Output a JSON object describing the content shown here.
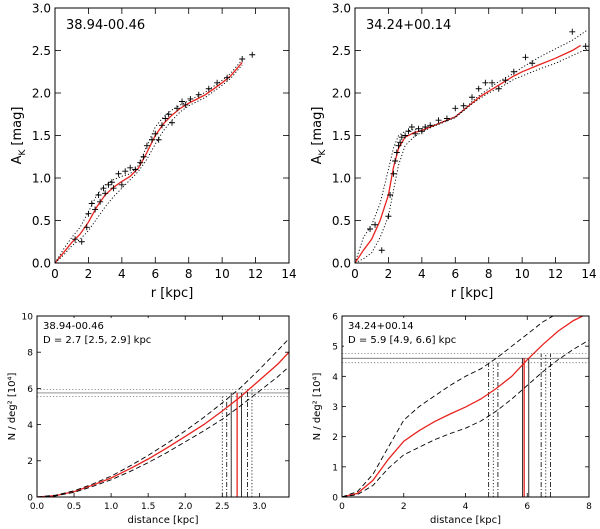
{
  "chart_data": [
    {
      "type": "scatter",
      "field_label": "38.94-00.46",
      "xlabel": "r [kpc]",
      "ylabel_main": "A",
      "ylabel_sub": "K",
      "ylabel_unit": "[mag]",
      "xlim": [
        0,
        14
      ],
      "ylim": [
        0,
        3
      ],
      "xticks": [
        0,
        2,
        4,
        6,
        8,
        10,
        12,
        14
      ],
      "yticks": [
        0.0,
        0.5,
        1.0,
        1.5,
        2.0,
        2.5,
        3.0
      ],
      "xtick_labels": [
        "0",
        "2",
        "4",
        "6",
        "8",
        "10",
        "12",
        "14"
      ],
      "ytick_labels": [
        "0.0",
        "0.5",
        "1.0",
        "1.5",
        "2.0",
        "2.5",
        "3.0"
      ],
      "points": [
        [
          1.2,
          0.28
        ],
        [
          1.6,
          0.25
        ],
        [
          1.9,
          0.42
        ],
        [
          2.0,
          0.58
        ],
        [
          2.2,
          0.7
        ],
        [
          2.4,
          0.63
        ],
        [
          2.6,
          0.8
        ],
        [
          2.7,
          0.72
        ],
        [
          2.9,
          0.88
        ],
        [
          3.0,
          0.82
        ],
        [
          3.2,
          0.92
        ],
        [
          3.4,
          0.95
        ],
        [
          3.5,
          0.88
        ],
        [
          3.8,
          1.05
        ],
        [
          4.0,
          0.92
        ],
        [
          4.2,
          1.08
        ],
        [
          4.5,
          1.12
        ],
        [
          4.8,
          1.1
        ],
        [
          5.1,
          1.18
        ],
        [
          5.3,
          1.25
        ],
        [
          5.5,
          1.38
        ],
        [
          5.8,
          1.45
        ],
        [
          6.0,
          1.52
        ],
        [
          6.2,
          1.45
        ],
        [
          6.4,
          1.62
        ],
        [
          6.6,
          1.7
        ],
        [
          6.8,
          1.75
        ],
        [
          7.0,
          1.65
        ],
        [
          7.3,
          1.82
        ],
        [
          7.6,
          1.9
        ],
        [
          7.8,
          1.86
        ],
        [
          8.1,
          1.93
        ],
        [
          8.6,
          1.98
        ],
        [
          9.2,
          2.05
        ],
        [
          9.7,
          2.12
        ],
        [
          10.3,
          2.18
        ],
        [
          11.2,
          2.4
        ],
        [
          11.8,
          2.45
        ]
      ],
      "series": [
        {
          "name": "fit",
          "style": "solid",
          "color": "#e8231f",
          "x": [
            0,
            0.5,
            1,
            1.5,
            2,
            2.5,
            3,
            3.5,
            4,
            4.5,
            5,
            5.5,
            6,
            6.5,
            7,
            7.5,
            8,
            8.5,
            9,
            9.5,
            10,
            10.5,
            11.2
          ],
          "y": [
            0,
            0.12,
            0.24,
            0.34,
            0.48,
            0.66,
            0.8,
            0.89,
            0.96,
            1.02,
            1.12,
            1.3,
            1.5,
            1.64,
            1.74,
            1.82,
            1.88,
            1.93,
            1.98,
            2.05,
            2.12,
            2.2,
            2.36
          ]
        },
        {
          "name": "upper",
          "style": "dotted",
          "color": "#000000",
          "x": [
            0,
            0.5,
            1,
            1.5,
            2,
            2.5,
            3,
            3.5,
            4,
            4.5,
            5,
            5.5,
            6,
            6.5,
            7,
            7.5,
            8,
            8.5,
            9,
            9.5,
            10,
            10.5,
            11.2
          ],
          "y": [
            0,
            0.16,
            0.3,
            0.42,
            0.6,
            0.8,
            0.92,
            0.98,
            1.02,
            1.05,
            1.15,
            1.38,
            1.6,
            1.72,
            1.8,
            1.86,
            1.91,
            1.96,
            2.01,
            2.08,
            2.15,
            2.23,
            2.39
          ]
        },
        {
          "name": "lower",
          "style": "dotted",
          "color": "#000000",
          "x": [
            0,
            0.5,
            1,
            1.5,
            2,
            2.5,
            3,
            3.5,
            4,
            4.5,
            5,
            5.5,
            6,
            6.5,
            7,
            7.5,
            8,
            8.5,
            9,
            9.5,
            10,
            10.5,
            11.2
          ],
          "y": [
            0,
            0.09,
            0.2,
            0.28,
            0.38,
            0.52,
            0.66,
            0.78,
            0.88,
            0.98,
            1.08,
            1.22,
            1.4,
            1.56,
            1.68,
            1.78,
            1.85,
            1.9,
            1.95,
            2.02,
            2.09,
            2.17,
            2.33
          ]
        }
      ]
    },
    {
      "type": "scatter",
      "field_label": "34.24+00.14",
      "xlabel": "r [kpc]",
      "ylabel_main": "A",
      "ylabel_sub": "K",
      "ylabel_unit": "[mag]",
      "xlim": [
        0,
        14
      ],
      "ylim": [
        0,
        3
      ],
      "xticks": [
        0,
        2,
        4,
        6,
        8,
        10,
        12,
        14
      ],
      "yticks": [
        0.0,
        0.5,
        1.0,
        1.5,
        2.0,
        2.5,
        3.0
      ],
      "xtick_labels": [
        "0",
        "2",
        "4",
        "6",
        "8",
        "10",
        "12",
        "14"
      ],
      "ytick_labels": [
        "0.0",
        "0.5",
        "1.0",
        "1.5",
        "2.0",
        "2.5",
        "3.0"
      ],
      "points": [
        [
          0.9,
          0.4
        ],
        [
          1.2,
          0.45
        ],
        [
          1.6,
          0.15
        ],
        [
          2.0,
          0.55
        ],
        [
          2.1,
          0.8
        ],
        [
          2.3,
          1.05
        ],
        [
          2.4,
          1.2
        ],
        [
          2.5,
          1.3
        ],
        [
          2.6,
          1.38
        ],
        [
          2.7,
          1.42
        ],
        [
          2.8,
          1.48
        ],
        [
          3.0,
          1.5
        ],
        [
          3.2,
          1.55
        ],
        [
          3.4,
          1.6
        ],
        [
          3.6,
          1.52
        ],
        [
          3.8,
          1.58
        ],
        [
          4.0,
          1.55
        ],
        [
          4.2,
          1.6
        ],
        [
          4.5,
          1.62
        ],
        [
          5.0,
          1.68
        ],
        [
          5.5,
          1.7
        ],
        [
          6.0,
          1.82
        ],
        [
          6.5,
          1.85
        ],
        [
          7.0,
          1.95
        ],
        [
          7.4,
          2.05
        ],
        [
          7.8,
          2.12
        ],
        [
          8.2,
          2.12
        ],
        [
          8.6,
          2.05
        ],
        [
          9.0,
          2.15
        ],
        [
          9.5,
          2.25
        ],
        [
          10.2,
          2.42
        ],
        [
          10.6,
          2.35
        ],
        [
          13.0,
          2.72
        ],
        [
          13.8,
          2.55
        ]
      ],
      "series": [
        {
          "name": "fit",
          "style": "solid",
          "color": "#e8231f",
          "x": [
            0,
            0.5,
            1,
            1.5,
            2,
            2.3,
            2.6,
            3,
            3.5,
            4,
            4.5,
            5,
            5.5,
            6,
            6.5,
            7,
            7.5,
            8,
            8.5,
            9,
            9.5,
            10,
            11,
            12,
            13,
            13.5
          ],
          "y": [
            0,
            0.15,
            0.28,
            0.5,
            0.8,
            1.12,
            1.35,
            1.48,
            1.53,
            1.56,
            1.6,
            1.64,
            1.68,
            1.72,
            1.8,
            1.88,
            1.96,
            2.02,
            2.08,
            2.14,
            2.2,
            2.25,
            2.33,
            2.41,
            2.5,
            2.56
          ]
        },
        {
          "name": "upper",
          "style": "dotted",
          "color": "#000000",
          "x": [
            0,
            0.5,
            1,
            1.5,
            2,
            2.3,
            2.6,
            3,
            3.5,
            4,
            4.5,
            5,
            5.5,
            6,
            6.5,
            7,
            7.5,
            8,
            8.5,
            9,
            9.5,
            10,
            11,
            12,
            13,
            13.9
          ],
          "y": [
            0,
            0.3,
            0.45,
            0.7,
            1.1,
            1.35,
            1.5,
            1.55,
            1.57,
            1.58,
            1.61,
            1.64,
            1.68,
            1.72,
            1.8,
            1.9,
            1.98,
            2.05,
            2.12,
            2.18,
            2.23,
            2.3,
            2.42,
            2.52,
            2.62,
            2.74
          ]
        },
        {
          "name": "lower",
          "style": "dotted",
          "color": "#000000",
          "x": [
            0,
            0.5,
            1,
            1.5,
            2,
            2.3,
            2.6,
            3,
            3.5,
            4,
            4.5,
            5,
            5.5,
            6,
            6.5,
            7,
            7.5,
            8,
            8.5,
            9,
            9.5,
            10,
            11,
            12,
            13,
            13.9
          ],
          "y": [
            0,
            0.05,
            0.12,
            0.3,
            0.55,
            0.85,
            1.15,
            1.38,
            1.48,
            1.54,
            1.59,
            1.63,
            1.67,
            1.71,
            1.79,
            1.87,
            1.94,
            2.0,
            2.05,
            2.1,
            2.16,
            2.2,
            2.28,
            2.35,
            2.44,
            2.52
          ]
        }
      ]
    },
    {
      "type": "line",
      "field_label": "38.94-00.46",
      "distance_label": "D = 2.7 [2.5, 2.9] kpc",
      "xlabel": "distance [kpc]",
      "ylabel": "N / deg² [10⁴]",
      "xlim": [
        0,
        3.4
      ],
      "ylim": [
        0,
        10
      ],
      "xticks": [
        0,
        0.5,
        1.0,
        1.5,
        2.0,
        2.5,
        3.0
      ],
      "yticks": [
        0,
        2,
        4,
        6,
        8,
        10
      ],
      "xtick_labels": [
        "0.0",
        "0.5",
        "1.0",
        "1.5",
        "2.0",
        "2.5",
        "3.0"
      ],
      "ytick_labels": [
        "0",
        "2",
        "4",
        "6",
        "8",
        "10"
      ],
      "hlines": [
        {
          "y": 5.75,
          "style": "solid"
        },
        {
          "y": 5.55,
          "style": "dotted"
        },
        {
          "y": 5.95,
          "style": "dotted"
        }
      ],
      "vlines": [
        {
          "x": 2.7,
          "style": "solid",
          "color": "#e8231f",
          "ymax": 5.75
        },
        {
          "x": 2.5,
          "style": "dotted",
          "color": "#000000",
          "ymax": 5.55
        },
        {
          "x": 2.9,
          "style": "dotted",
          "color": "#000000",
          "ymax": 5.95
        },
        {
          "x": 2.62,
          "style": "solid",
          "color": "#000000",
          "ymax": 5.75
        },
        {
          "x": 2.76,
          "style": "solid",
          "color": "#000000",
          "ymax": 5.75
        },
        {
          "x": 2.56,
          "style": "dashdot",
          "color": "#000000",
          "ymax": 5.55
        },
        {
          "x": 2.84,
          "style": "dashdot",
          "color": "#000000",
          "ymax": 5.95
        }
      ],
      "series": [
        {
          "name": "model",
          "style": "solid",
          "color": "#e8231f",
          "x": [
            0,
            0.25,
            0.5,
            0.75,
            1,
            1.25,
            1.5,
            1.75,
            2,
            2.25,
            2.5,
            2.75,
            3,
            3.25,
            3.4
          ],
          "y": [
            0,
            0.08,
            0.3,
            0.65,
            1.05,
            1.55,
            2.1,
            2.7,
            3.35,
            4.0,
            4.75,
            5.55,
            6.45,
            7.35,
            8.0
          ]
        },
        {
          "name": "upper",
          "style": "dashed",
          "color": "#000000",
          "x": [
            0,
            0.25,
            0.5,
            0.75,
            1,
            1.25,
            1.5,
            1.75,
            2,
            2.25,
            2.5,
            2.75,
            3,
            3.25,
            3.4
          ],
          "y": [
            0,
            0.1,
            0.34,
            0.72,
            1.15,
            1.7,
            2.3,
            2.95,
            3.65,
            4.4,
            5.2,
            6.05,
            7.05,
            8.1,
            8.75
          ]
        },
        {
          "name": "lower",
          "style": "dashed",
          "color": "#000000",
          "x": [
            0,
            0.25,
            0.5,
            0.75,
            1,
            1.25,
            1.5,
            1.75,
            2,
            2.25,
            2.5,
            2.75,
            3,
            3.25,
            3.4
          ],
          "y": [
            0,
            0.06,
            0.26,
            0.58,
            0.95,
            1.4,
            1.9,
            2.45,
            3.05,
            3.65,
            4.3,
            5.05,
            5.85,
            6.65,
            7.2
          ]
        }
      ]
    },
    {
      "type": "line",
      "field_label": "34.24+00.14",
      "distance_label": "D = 5.9 [4.9, 6.6] kpc",
      "xlabel": "distance [kpc]",
      "ylabel": "N / deg² [10⁴]",
      "xlim": [
        0,
        8
      ],
      "ylim": [
        0,
        6
      ],
      "xticks": [
        0,
        2,
        4,
        6,
        8
      ],
      "yticks": [
        0,
        1,
        2,
        3,
        4,
        5,
        6
      ],
      "xtick_labels": [
        "0",
        "2",
        "4",
        "6",
        "8"
      ],
      "ytick_labels": [
        "0",
        "1",
        "2",
        "3",
        "4",
        "5",
        "6"
      ],
      "hlines": [
        {
          "y": 4.6,
          "style": "solid"
        },
        {
          "y": 4.45,
          "style": "dotted"
        },
        {
          "y": 4.75,
          "style": "dotted"
        }
      ],
      "vlines": [
        {
          "x": 5.9,
          "style": "solid",
          "color": "#e8231f",
          "ymax": 4.6
        },
        {
          "x": 5.85,
          "style": "solid",
          "color": "#000000",
          "ymax": 4.6
        },
        {
          "x": 6.05,
          "style": "solid",
          "color": "#000000",
          "ymax": 4.6
        },
        {
          "x": 4.75,
          "style": "dashdot",
          "color": "#000000",
          "ymax": 4.45
        },
        {
          "x": 4.9,
          "style": "dotted",
          "color": "#000000",
          "ymax": 4.45
        },
        {
          "x": 5.05,
          "style": "dashdot",
          "color": "#000000",
          "ymax": 4.45
        },
        {
          "x": 6.45,
          "style": "dashdot",
          "color": "#000000",
          "ymax": 4.75
        },
        {
          "x": 6.6,
          "style": "dotted",
          "color": "#000000",
          "ymax": 4.75
        },
        {
          "x": 6.75,
          "style": "dashdot",
          "color": "#000000",
          "ymax": 4.75
        }
      ],
      "series": [
        {
          "name": "model",
          "style": "solid",
          "color": "#e8231f",
          "x": [
            0,
            0.5,
            1,
            1.5,
            2,
            2.5,
            3,
            3.5,
            4,
            4.5,
            5,
            5.5,
            6,
            6.5,
            7,
            7.5,
            8
          ],
          "y": [
            0,
            0.12,
            0.55,
            1.25,
            1.85,
            2.2,
            2.5,
            2.75,
            2.98,
            3.25,
            3.6,
            4.0,
            4.55,
            5.05,
            5.5,
            5.85,
            6.1
          ]
        },
        {
          "name": "upper",
          "style": "dashed",
          "color": "#000000",
          "x": [
            0,
            0.5,
            1,
            1.5,
            2,
            2.5,
            3,
            3.5,
            4,
            4.5,
            5,
            5.5,
            6,
            6.5,
            7,
            7.5
          ],
          "y": [
            0,
            0.18,
            0.75,
            1.65,
            2.55,
            3.0,
            3.35,
            3.7,
            4.0,
            4.25,
            4.6,
            5.0,
            5.4,
            5.8,
            6.1,
            6.3
          ]
        },
        {
          "name": "lower",
          "style": "dashed",
          "color": "#000000",
          "x": [
            0,
            0.5,
            1,
            1.5,
            2,
            2.5,
            3,
            3.5,
            4,
            4.5,
            5,
            5.5,
            6,
            6.5,
            7,
            7.5,
            8
          ],
          "y": [
            0,
            0.08,
            0.38,
            0.95,
            1.4,
            1.65,
            1.9,
            2.1,
            2.28,
            2.52,
            2.85,
            3.25,
            3.7,
            4.15,
            4.55,
            4.9,
            5.2
          ]
        }
      ]
    }
  ]
}
